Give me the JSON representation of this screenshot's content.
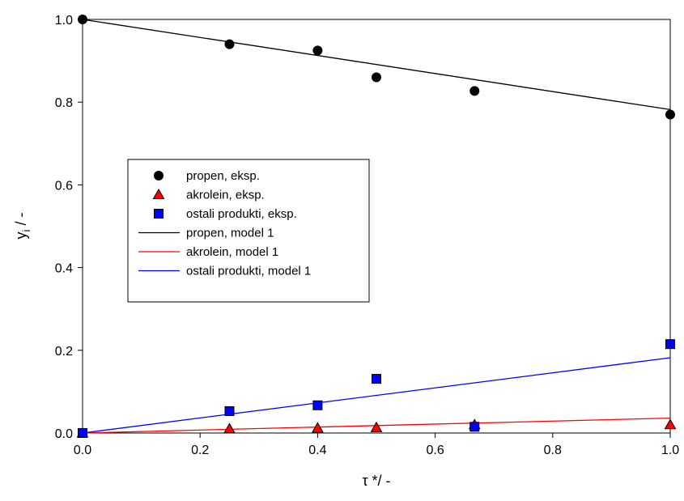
{
  "chart_data": {
    "type": "scatter",
    "xlabel": "τ */ -",
    "ylabel": "y",
    "ylabel_sub": "i",
    "ylabel_suffix": " / -",
    "xlim": [
      0.0,
      1.0
    ],
    "ylim": [
      0.0,
      1.0
    ],
    "x_ticks": [
      "0.0",
      "0.2",
      "0.4",
      "0.6",
      "0.8",
      "1.0"
    ],
    "y_ticks": [
      "0.0",
      "0.2",
      "0.4",
      "0.6",
      "0.8",
      "1.0"
    ],
    "grid": false,
    "legend_position": "center-left",
    "series": [
      {
        "name": "propen, eksp.",
        "kind": "points",
        "marker": "circle",
        "color": "#000000",
        "x": [
          0.0,
          0.25,
          0.4,
          0.5,
          0.667,
          1.0
        ],
        "y": [
          1.0,
          0.94,
          0.925,
          0.86,
          0.827,
          0.77
        ]
      },
      {
        "name": "akrolein, eksp.",
        "kind": "points",
        "marker": "triangle",
        "color": "#ff0000",
        "x": [
          0.0,
          0.25,
          0.4,
          0.5,
          0.667,
          1.0
        ],
        "y": [
          0.0,
          0.01,
          0.012,
          0.013,
          0.02,
          0.02
        ]
      },
      {
        "name": "ostali produkti, eksp.",
        "kind": "points",
        "marker": "square",
        "color": "#0000ff",
        "x": [
          0.0,
          0.25,
          0.4,
          0.5,
          0.667,
          1.0
        ],
        "y": [
          0.0,
          0.053,
          0.067,
          0.131,
          0.015,
          0.215
        ]
      },
      {
        "name": "propen, model 1",
        "kind": "line",
        "color": "#000000",
        "x": [
          0.0,
          1.0
        ],
        "y": [
          1.0,
          0.782
        ]
      },
      {
        "name": "akrolein, model 1",
        "kind": "line",
        "color": "#ff0000",
        "x": [
          0.0,
          1.0
        ],
        "y": [
          0.0,
          0.036
        ]
      },
      {
        "name": "ostali produkti, model 1",
        "kind": "line",
        "color": "#0000ff",
        "x": [
          0.0,
          1.0
        ],
        "y": [
          0.0,
          0.182
        ]
      }
    ]
  }
}
